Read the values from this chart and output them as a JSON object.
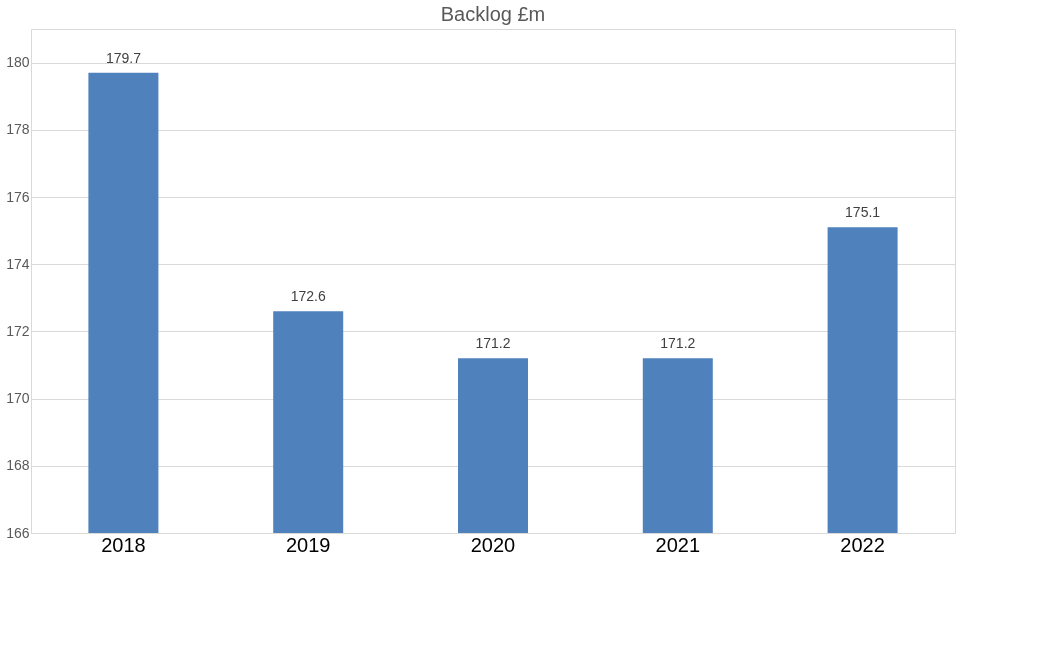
{
  "chart_data": {
    "type": "bar",
    "title": "Backlog £m",
    "categories": [
      "2018",
      "2019",
      "2020",
      "2021",
      "2022"
    ],
    "values": [
      179.7,
      172.6,
      171.2,
      171.2,
      175.1
    ],
    "color": "#4f81bd",
    "ylim": [
      166,
      181
    ],
    "yticks": [
      166,
      168,
      170,
      172,
      174,
      176,
      178,
      180
    ],
    "grid": "y",
    "data_labels": true
  }
}
